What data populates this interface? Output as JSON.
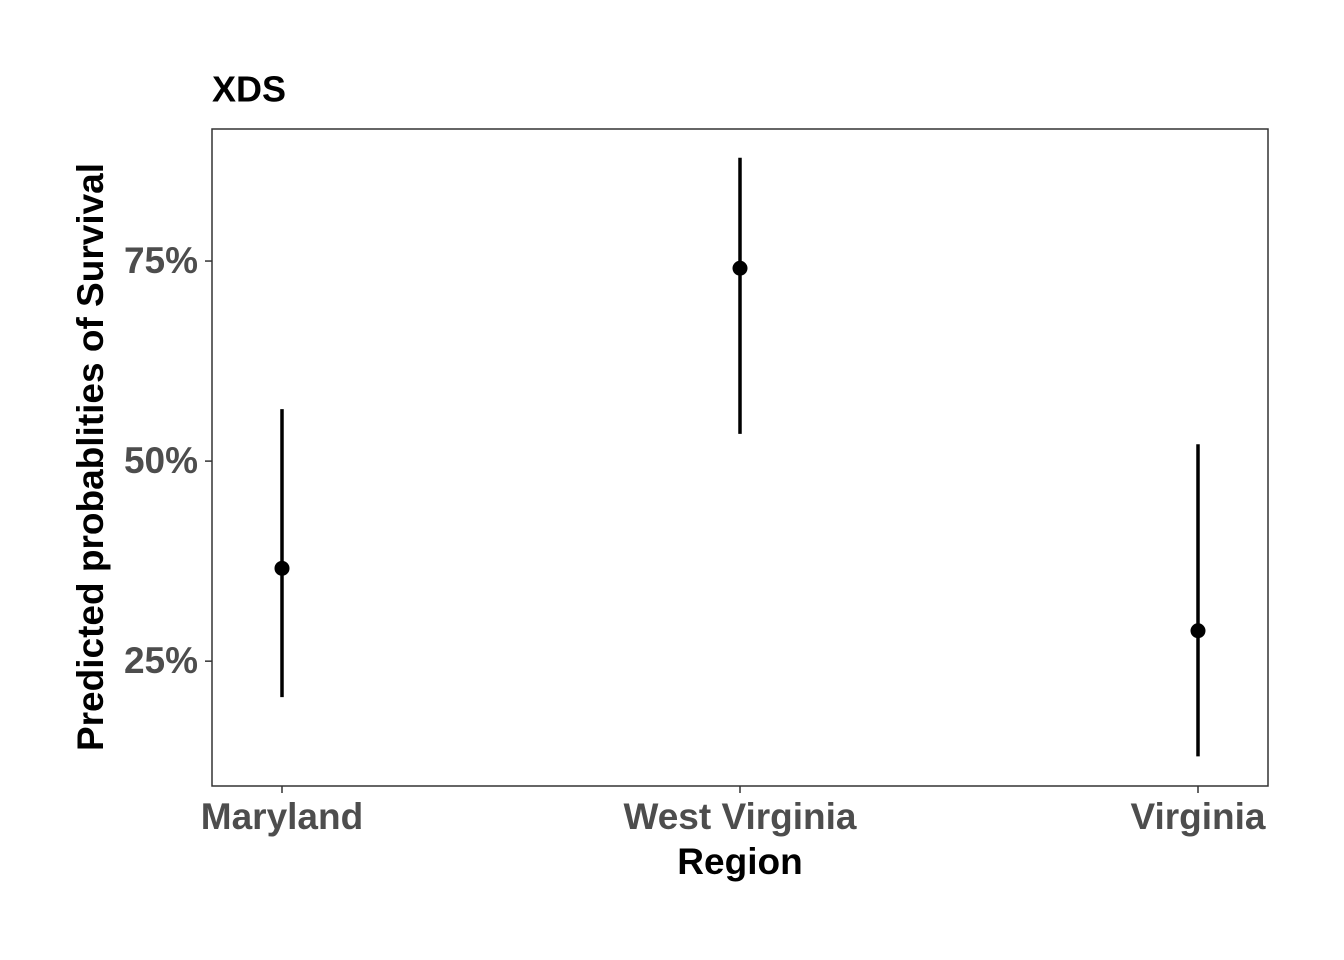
{
  "chart_data": {
    "type": "pointrange",
    "title": "XDS",
    "x_label": "Region",
    "y_label": "Predicted probablities of Survival",
    "categories": [
      "Maryland",
      "West Virginia",
      "Virginia"
    ],
    "values": [
      36.6,
      74.1,
      28.8
    ],
    "lower": [
      20.5,
      53.4,
      13.1
    ],
    "upper": [
      56.5,
      87.9,
      52.1
    ],
    "color": "#000000",
    "ylim": [
      9.4,
      91.5
    ],
    "yticks": [
      {
        "value": 25,
        "label": "25%"
      },
      {
        "value": 50,
        "label": "50%"
      },
      {
        "value": 75,
        "label": "75%"
      }
    ],
    "grid": false
  }
}
